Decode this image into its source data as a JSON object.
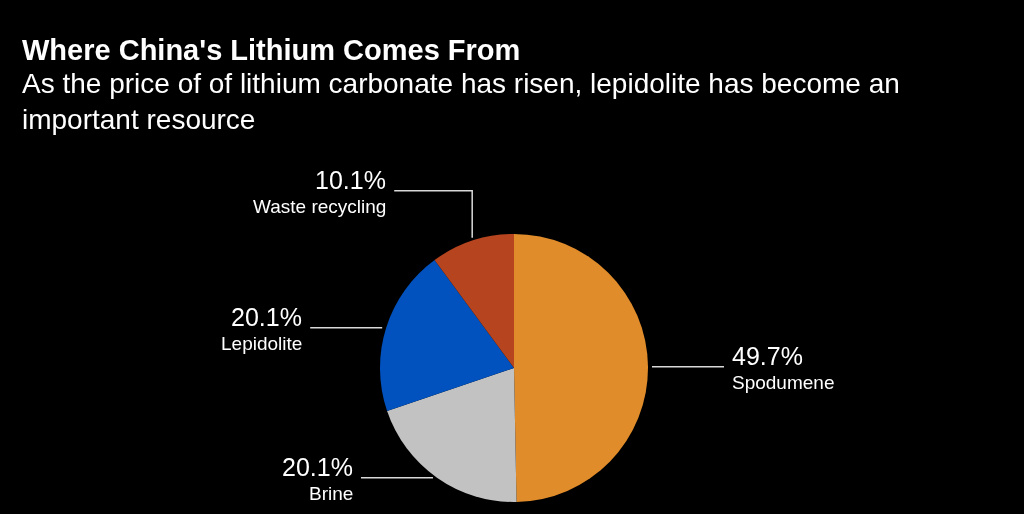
{
  "chart_data": {
    "type": "pie",
    "title": "Where China's Lithium Comes From",
    "subtitle": "As the price of of lithium carbonate has risen, lepidolite has become an important resource",
    "categories": [
      "Spodumene",
      "Brine",
      "Lepidolite",
      "Waste recycling"
    ],
    "values": [
      49.7,
      20.1,
      20.1,
      10.1
    ],
    "value_labels": [
      "49.7%",
      "20.1%",
      "20.1%",
      "10.1%"
    ],
    "colors": [
      "#e08c2b",
      "#c2c2c2",
      "#0152be",
      "#b5441f"
    ]
  }
}
